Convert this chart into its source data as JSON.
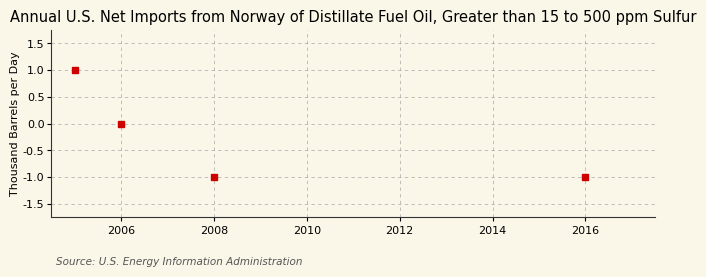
{
  "title": "Annual U.S. Net Imports from Norway of Distillate Fuel Oil, Greater than 15 to 500 ppm Sulfur",
  "ylabel": "Thousand Barrels per Day",
  "source": "Source: U.S. Energy Information Administration",
  "xlim": [
    2004.5,
    2017.5
  ],
  "ylim": [
    -1.75,
    1.75
  ],
  "yticks": [
    -1.5,
    -1.0,
    -0.5,
    0.0,
    0.5,
    1.0,
    1.5
  ],
  "xticks": [
    2006,
    2008,
    2010,
    2012,
    2014,
    2016
  ],
  "data_x": [
    2005,
    2006,
    2008,
    2016
  ],
  "data_y": [
    1.0,
    0.0,
    -1.0,
    -1.0
  ],
  "marker_color": "#cc0000",
  "marker_style": "s",
  "marker_size": 4,
  "background_color": "#faf6e8",
  "grid_color": "#999999",
  "title_fontsize": 10.5,
  "label_fontsize": 8,
  "tick_fontsize": 8,
  "source_fontsize": 7.5
}
